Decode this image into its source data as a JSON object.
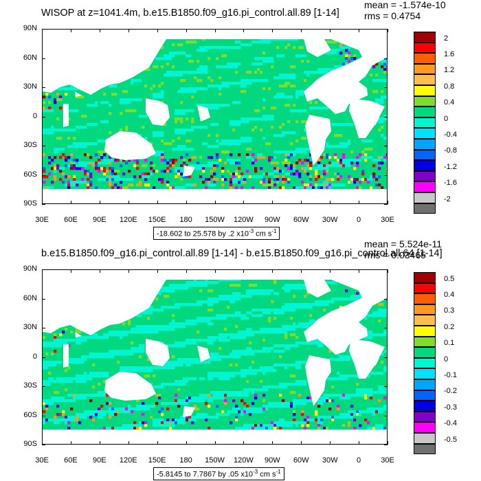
{
  "panels": [
    {
      "title": "WISOP at z=1041.4m, b.e15.B1850.f09_g16.pi_control.all.89 [1-14]",
      "mean_text": "mean = -1.574e-10",
      "rms_text": "rms = 0.4754",
      "range_text_main": "-18.602 to 25.578 by .2 x10",
      "range_exp": "-3",
      "range_unit": " cm s",
      "range_unit_exp": "-1",
      "levels": [
        "2",
        "1.6",
        "1.2",
        "0.8",
        "0.4",
        "0",
        "-0.4",
        "-0.8",
        "-1.2",
        "-1.6",
        "-2"
      ],
      "noise": 1.0
    },
    {
      "title": "b.e15.B1850.f09_g16.pi_control.all.89 [1-14] - b.e15.B1850.f09_g16.pi_control.all.64 [1-14]",
      "mean_text": "mean = 5.524e-11",
      "rms_text": "rms = 0.03465",
      "range_text_main": "-5.8145 to 7.7867 by .05 x10",
      "range_exp": "-3",
      "range_unit": " cm s",
      "range_unit_exp": "-1",
      "levels": [
        "0.5",
        "0.4",
        "0.3",
        "0.2",
        "0.1",
        "0",
        "-0.1",
        "-0.2",
        "-0.3",
        "-0.4",
        "-0.5"
      ],
      "noise": 0.45
    }
  ],
  "lat_labels": [
    "90N",
    "60N",
    "30N",
    "0",
    "30S",
    "60S",
    "90S"
  ],
  "lon_labels": [
    "30E",
    "60E",
    "90E",
    "120E",
    "150E",
    "180",
    "150W",
    "120W",
    "90W",
    "60W",
    "30W",
    "0",
    "30E"
  ],
  "colors": [
    "#a00000",
    "#ff0000",
    "#ff5e00",
    "#ff9a1e",
    "#ffbe4a",
    "#ffff00",
    "#7fdc28",
    "#00d97f",
    "#00f5d2",
    "#00e0ff",
    "#00a5ff",
    "#0065ff",
    "#0000e0",
    "#8000c8",
    "#ff00ff",
    "#c8c8c8",
    "#707070"
  ],
  "chart_data": [
    {
      "type": "heatmap",
      "title": "WISOP at z=1041.4m, b.e15.B1850.f09_g16.pi_control.all.89 [1-14]",
      "xlabel": "",
      "ylabel": "",
      "xlim": [
        "30E",
        "30E"
      ],
      "ylim": [
        "90S",
        "90N"
      ],
      "mean": -1.574e-10,
      "rms": 0.4754,
      "min": -18.602,
      "max": 25.578,
      "contour_interval": 0.2,
      "unit": "x10^-3 cm s^-1",
      "legend_levels": [
        2,
        1.6,
        1.2,
        0.8,
        0.4,
        0,
        -0.4,
        -0.8,
        -1.2,
        -1.6,
        -2
      ]
    },
    {
      "type": "heatmap",
      "title": "b.e15.B1850.f09_g16.pi_control.all.89 [1-14] - b.e15.B1850.f09_g16.pi_control.all.64 [1-14]",
      "xlabel": "",
      "ylabel": "",
      "xlim": [
        "30E",
        "30E"
      ],
      "ylim": [
        "90S",
        "90N"
      ],
      "mean": 5.524e-11,
      "rms": 0.03465,
      "min": -5.8145,
      "max": 7.7867,
      "contour_interval": 0.05,
      "unit": "x10^-3 cm s^-1",
      "legend_levels": [
        0.5,
        0.4,
        0.3,
        0.2,
        0.1,
        0,
        -0.1,
        -0.2,
        -0.3,
        -0.4,
        -0.5
      ]
    }
  ]
}
